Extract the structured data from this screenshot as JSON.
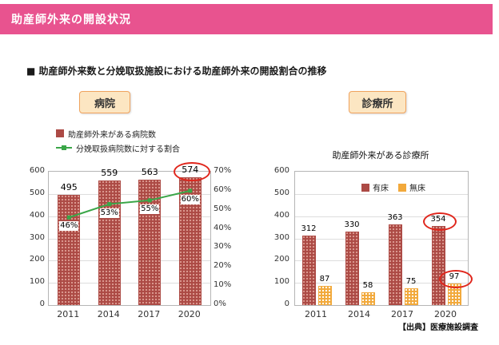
{
  "header": {
    "title": "助産師外来の開設状況"
  },
  "subtitle": "■ 助産師外来数と分娩取扱施設における助産師外来の開設割合の推移",
  "sections": {
    "hospital_label": "病院",
    "clinic_label": "診療所"
  },
  "source": "【出典】医療施設調査",
  "colors": {
    "header-pink": "#E8538F",
    "bar-red": "#AC4A45",
    "bar-red-dot": "#DC9B92",
    "bar-orange": "#F2A93B",
    "line-green": "#3AA648",
    "highlight-red": "#E0261C",
    "tag-bg": "#FCE6C2",
    "tag-border": "#F0A35E"
  },
  "chart_data": [
    {
      "type": "bar",
      "name": "hospital-chart",
      "categories": [
        "2011",
        "2014",
        "2017",
        "2020"
      ],
      "bar_series": {
        "name": "助産師外来がある病院数",
        "values": [
          495,
          559,
          563,
          574
        ],
        "circled_index": 3
      },
      "line_series": {
        "name": "分娩取扱病院数に対する割合",
        "values_percent": [
          46,
          53,
          55,
          60
        ]
      },
      "ylim_left": [
        0,
        600
      ],
      "ytick_step_left": 100,
      "ylim_right_percent": [
        0,
        70
      ],
      "ytick_step_right": 10,
      "grid": true,
      "legend_position": "top-left"
    },
    {
      "type": "bar",
      "name": "clinic-chart",
      "title": "助産師外来がある診療所",
      "categories": [
        "2011",
        "2014",
        "2017",
        "2020"
      ],
      "series": [
        {
          "name": "有床",
          "values": [
            312,
            330,
            363,
            354
          ],
          "circled_index": 3
        },
        {
          "name": "無床",
          "values": [
            87,
            58,
            75,
            97
          ],
          "circled_index": 3
        }
      ],
      "ylim": [
        0,
        600
      ],
      "ytick_step": 100,
      "grid": true,
      "legend_position": "top-right-inside"
    }
  ]
}
